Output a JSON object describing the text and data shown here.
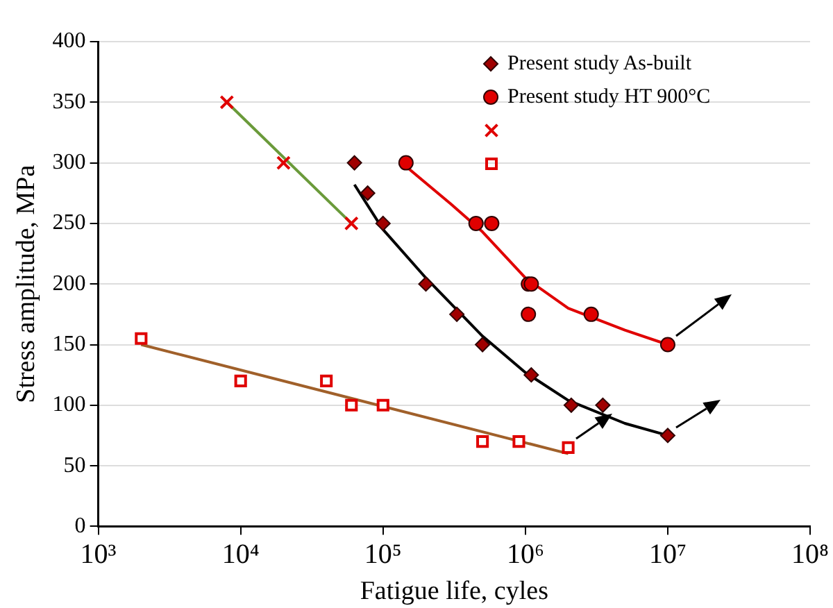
{
  "chart_data": {
    "type": "scatter",
    "xlabel": "Fatigue life, cyles",
    "ylabel": "Stress amplitude, MPa",
    "log": "x",
    "grid": "y",
    "legend": "top right",
    "xlim": [
      1000,
      100000000
    ],
    "xticks": [
      {
        "value": 1000,
        "label": "10³"
      },
      {
        "value": 10000,
        "label": "10⁴"
      },
      {
        "value": 100000,
        "label": "10⁵"
      },
      {
        "value": 1000000,
        "label": "10⁶"
      },
      {
        "value": 10000000,
        "label": "10⁷"
      },
      {
        "value": 100000000,
        "label": "10⁸"
      }
    ],
    "ylim": [
      0,
      400
    ],
    "yticks": [
      0,
      50,
      100,
      150,
      200,
      250,
      300,
      350,
      400
    ],
    "series": [
      {
        "name": "Present study As-built",
        "type": "scatter",
        "marker": "diamond",
        "color": "#a00000",
        "x": [
          63000,
          78000,
          100000,
          200000,
          330000,
          500000,
          1100000,
          2100000,
          3500000,
          10000000
        ],
        "values": [
          300,
          275,
          250,
          200,
          175,
          150,
          125,
          100,
          100,
          75
        ]
      },
      {
        "name": "Present study HT 900°C",
        "type": "scatter",
        "marker": "circle",
        "color": "#e00000",
        "x": [
          145000,
          450000,
          580000,
          1050000,
          1100000,
          1050000,
          2900000,
          10000000
        ],
        "values": [
          300,
          250,
          250,
          200,
          200,
          175,
          175,
          150
        ]
      },
      {
        "type": "scatter",
        "marker": "cross",
        "color": "#e00000",
        "x": [
          8000,
          20000,
          60000
        ],
        "values": [
          350,
          300,
          250
        ]
      },
      {
        "type": "scatter",
        "marker": "square",
        "color": "#e00000",
        "x": [
          2000,
          10000,
          40000,
          60000,
          100000,
          500000,
          900000,
          2000000
        ],
        "values": [
          155,
          120,
          120,
          100,
          100,
          70,
          70,
          65
        ]
      },
      {
        "type": "line",
        "marker": "none",
        "color": "#000000",
        "x": [
          63000,
          100000,
          200000,
          500000,
          1000000,
          2000000,
          5000000,
          10000000
        ],
        "values": [
          282,
          245,
          205,
          157,
          127,
          104,
          85,
          75
        ]
      },
      {
        "type": "line",
        "marker": "none",
        "color": "#e00000",
        "x": [
          145000,
          300000,
          500000,
          1000000,
          2000000,
          5000000,
          10000000
        ],
        "values": [
          297,
          266,
          243,
          205,
          180,
          162,
          150
        ]
      },
      {
        "type": "line",
        "marker": "none",
        "color": "#6a9a3a",
        "x": [
          8000,
          60000
        ],
        "values": [
          350,
          250
        ]
      },
      {
        "type": "line",
        "marker": "none",
        "color": "#a0602a",
        "x": [
          2000,
          2000000
        ],
        "values": [
          150,
          60
        ]
      }
    ]
  }
}
